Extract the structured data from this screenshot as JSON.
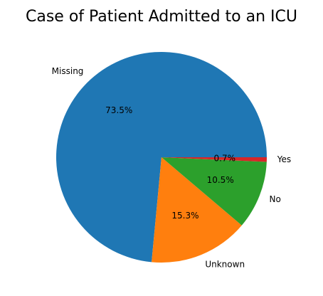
{
  "chart_data": {
    "type": "pie",
    "title": "Case of Patient Admitted to an ICU",
    "categories": [
      "Missing",
      "Unknown",
      "No",
      "Yes"
    ],
    "values": [
      73.5,
      15.3,
      10.5,
      0.7
    ],
    "percent_labels": [
      "73.5%",
      "15.3%",
      "10.5%",
      "0.7%"
    ],
    "colors": [
      "#1f77b4",
      "#ff7f0e",
      "#2ca02c",
      "#d62728"
    ],
    "start_angle_deg": 0,
    "direction": "counterclockwise",
    "legend": "none"
  }
}
